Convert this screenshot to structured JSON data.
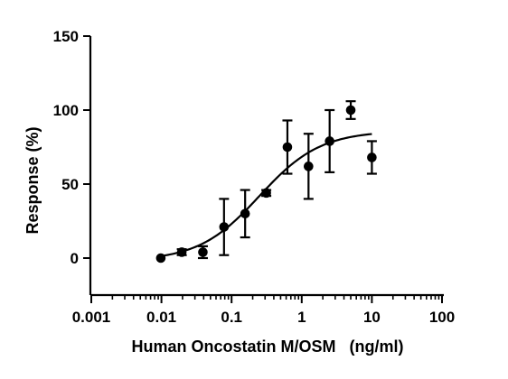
{
  "chart_data": {
    "type": "scatter",
    "xlabel": "Human Oncostatin M/OSM   (ng/ml)",
    "ylabel": "Response (%)",
    "xscale": "log",
    "xlim": [
      0.001,
      100
    ],
    "ylim": [
      -25,
      150
    ],
    "x_ticks": [
      "0.001",
      "0.01",
      "0.1",
      "1",
      "10",
      "100"
    ],
    "y_ticks": [
      "0",
      "50",
      "100",
      "150"
    ],
    "grid": false,
    "legend": "none",
    "series": [
      {
        "points": [
          {
            "x": 0.0098,
            "y": 0,
            "err": 0
          },
          {
            "x": 0.0195,
            "y": 4,
            "err": 2
          },
          {
            "x": 0.039,
            "y": 4,
            "err": 4
          },
          {
            "x": 0.078,
            "y": 21,
            "err": 19
          },
          {
            "x": 0.156,
            "y": 30,
            "err": 16
          },
          {
            "x": 0.3125,
            "y": 44,
            "err": 2
          },
          {
            "x": 0.625,
            "y": 75,
            "err": 18
          },
          {
            "x": 1.25,
            "y": 62,
            "err": 22
          },
          {
            "x": 2.5,
            "y": 79,
            "err": 21
          },
          {
            "x": 5,
            "y": 100,
            "err": 6
          },
          {
            "x": 10,
            "y": 68,
            "err": 11
          }
        ],
        "fit": {
          "model": "4PL",
          "bottom": -2,
          "top": 86,
          "ec50": 0.25,
          "hill": 1.0
        }
      }
    ],
    "colors": {
      "marker": "#000000",
      "line": "#000000"
    }
  }
}
